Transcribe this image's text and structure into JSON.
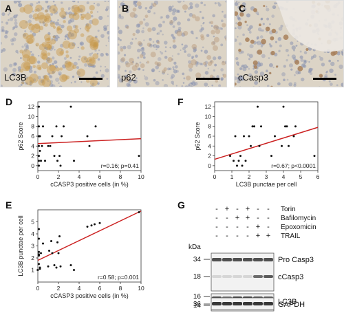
{
  "micrographs": [
    {
      "letter": "A",
      "label": "LC3B",
      "tint": "#c89a4a"
    },
    {
      "letter": "B",
      "label": "p62",
      "tint": "#b79a78"
    },
    {
      "letter": "C",
      "label": "cCasp3",
      "tint": "#a8805a"
    }
  ],
  "charts": {
    "D": {
      "letter": "D",
      "type": "scatter",
      "xlabel": "cCASP3 positive cells (in %)",
      "ylabel": "p62 Score",
      "xlim": [
        0,
        10
      ],
      "ylim": [
        -1,
        13
      ],
      "xticks": [
        0,
        2,
        4,
        6,
        8,
        10
      ],
      "yticks": [
        0,
        2,
        4,
        6,
        8,
        10,
        12
      ],
      "annotation": "r=0.16; p=0.41",
      "points": [
        [
          0.1,
          12
        ],
        [
          0.1,
          8
        ],
        [
          0.1,
          6
        ],
        [
          0.1,
          6
        ],
        [
          0.1,
          4
        ],
        [
          0.1,
          2
        ],
        [
          0.1,
          1
        ],
        [
          0.1,
          0
        ],
        [
          0.2,
          6
        ],
        [
          0.2,
          3
        ],
        [
          0.3,
          1
        ],
        [
          0.4,
          4
        ],
        [
          0.5,
          8
        ],
        [
          0.7,
          1
        ],
        [
          1.0,
          4
        ],
        [
          1.2,
          4
        ],
        [
          1.4,
          6
        ],
        [
          1.6,
          2
        ],
        [
          1.8,
          8
        ],
        [
          1.9,
          1
        ],
        [
          2.1,
          2
        ],
        [
          2.2,
          0
        ],
        [
          2.3,
          6
        ],
        [
          2.5,
          8
        ],
        [
          3.2,
          12
        ],
        [
          3.5,
          1
        ],
        [
          4.8,
          6
        ],
        [
          5.0,
          4
        ],
        [
          5.6,
          8
        ],
        [
          9.8,
          2
        ]
      ],
      "fit": {
        "x": [
          0,
          10
        ],
        "y": [
          4.5,
          5.5
        ],
        "color": "#cc2222"
      }
    },
    "F": {
      "letter": "F",
      "type": "scatter",
      "xlabel": "LC3B punctae per cell",
      "ylabel": "p62 Score",
      "xlim": [
        0,
        6
      ],
      "ylim": [
        -1,
        13
      ],
      "xticks": [
        0,
        1,
        2,
        3,
        4,
        5,
        6
      ],
      "yticks": [
        0,
        2,
        4,
        6,
        8,
        10,
        12
      ],
      "annotation": "r=0.67; p<0.0001",
      "points": [
        [
          0.9,
          2
        ],
        [
          1.1,
          1
        ],
        [
          1.2,
          6
        ],
        [
          1.3,
          0
        ],
        [
          1.4,
          1
        ],
        [
          1.5,
          2
        ],
        [
          1.6,
          0
        ],
        [
          1.7,
          6
        ],
        [
          1.8,
          1
        ],
        [
          2.0,
          6
        ],
        [
          2.1,
          4
        ],
        [
          2.2,
          8
        ],
        [
          2.3,
          8
        ],
        [
          2.5,
          12
        ],
        [
          2.6,
          4
        ],
        [
          2.7,
          8
        ],
        [
          3.3,
          2
        ],
        [
          3.5,
          6
        ],
        [
          3.9,
          4
        ],
        [
          4.0,
          12
        ],
        [
          4.1,
          8
        ],
        [
          4.2,
          8
        ],
        [
          4.3,
          4
        ],
        [
          4.6,
          6
        ],
        [
          4.7,
          8
        ],
        [
          5.8,
          2
        ]
      ],
      "fit": {
        "x": [
          0,
          6
        ],
        "y": [
          1.3,
          7.8
        ],
        "color": "#cc2222"
      }
    },
    "E": {
      "letter": "E",
      "type": "scatter",
      "xlabel": "cCASP3 positive cells (in %)",
      "ylabel": "LC3B punctae per cell",
      "xlim": [
        0,
        10
      ],
      "ylim": [
        0,
        6
      ],
      "xticks": [
        0,
        2,
        4,
        6,
        8,
        10
      ],
      "yticks": [
        1,
        2,
        3,
        4,
        5
      ],
      "annotation": "r=0.58; p=0.001",
      "points": [
        [
          0.0,
          1.0
        ],
        [
          0.1,
          4.4
        ],
        [
          0.1,
          3.6
        ],
        [
          0.1,
          2.5
        ],
        [
          0.1,
          2.3
        ],
        [
          0.1,
          2.2
        ],
        [
          0.1,
          1.5
        ],
        [
          0.2,
          1.2
        ],
        [
          0.2,
          1.1
        ],
        [
          0.3,
          2.4
        ],
        [
          0.5,
          3.2
        ],
        [
          1.0,
          1.3
        ],
        [
          1.1,
          2.6
        ],
        [
          1.3,
          3.4
        ],
        [
          1.4,
          2.4
        ],
        [
          1.6,
          1.4
        ],
        [
          1.8,
          1.2
        ],
        [
          1.9,
          3.3
        ],
        [
          2.0,
          2.4
        ],
        [
          2.1,
          3.8
        ],
        [
          2.2,
          1.3
        ],
        [
          3.2,
          1.4
        ],
        [
          3.5,
          1.0
        ],
        [
          4.8,
          4.6
        ],
        [
          5.2,
          4.7
        ],
        [
          5.5,
          4.8
        ],
        [
          6.0,
          4.9
        ],
        [
          9.8,
          5.8
        ]
      ],
      "fit": {
        "x": [
          0,
          10
        ],
        "y": [
          1.8,
          5.9
        ],
        "color": "#cc2222"
      }
    }
  },
  "blot": {
    "letter": "G",
    "kda_label": "kDa",
    "treatments": [
      {
        "name": "Torin",
        "signs": [
          "-",
          "+",
          "-",
          "+",
          "-",
          "-"
        ]
      },
      {
        "name": "Bafilomycin",
        "signs": [
          "-",
          "-",
          "+",
          "+",
          "-",
          "-"
        ]
      },
      {
        "name": "Epoxomicin",
        "signs": [
          "-",
          "-",
          "-",
          "-",
          "+",
          "-"
        ]
      },
      {
        "name": "TRAIL",
        "signs": [
          "-",
          "-",
          "-",
          "-",
          "+",
          "+"
        ]
      }
    ],
    "bands": [
      {
        "name": "Pro Casp3",
        "kda": "34"
      },
      {
        "name": "cCasp3",
        "kda": "18"
      },
      {
        "name": "LC3B",
        "kda": "16"
      },
      {
        "name": "LC3B-lower",
        "kda": "14"
      },
      {
        "name": "GAPDH",
        "kda": "36"
      }
    ]
  }
}
